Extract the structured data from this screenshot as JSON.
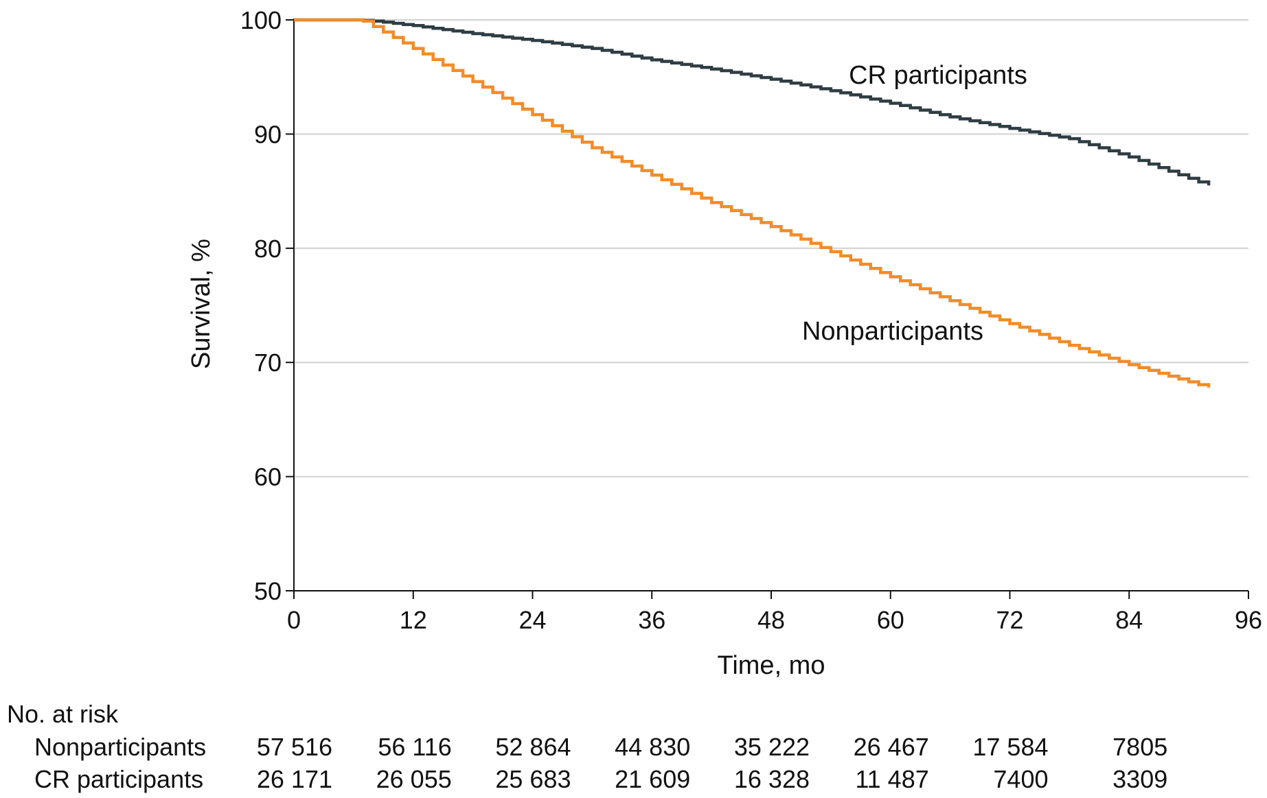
{
  "chart_data": {
    "type": "line",
    "title": "",
    "xlabel": "Time, mo",
    "ylabel": "Survival, %",
    "xlim": [
      0,
      96
    ],
    "ylim": [
      50,
      100
    ],
    "x_ticks": [
      0,
      12,
      24,
      36,
      48,
      60,
      72,
      84,
      96
    ],
    "y_ticks": [
      50,
      60,
      70,
      80,
      90,
      100
    ],
    "grid": "horizontal",
    "legend": "none",
    "series": [
      {
        "name": "CR participants",
        "color": "#2f3d44",
        "step": true,
        "points": [
          [
            0,
            100
          ],
          [
            6,
            100
          ],
          [
            8,
            99.9
          ],
          [
            12,
            99.5
          ],
          [
            18,
            98.8
          ],
          [
            24,
            98.2
          ],
          [
            30,
            97.5
          ],
          [
            36,
            96.5
          ],
          [
            42,
            95.7
          ],
          [
            48,
            94.8
          ],
          [
            54,
            93.8
          ],
          [
            60,
            92.7
          ],
          [
            66,
            91.5
          ],
          [
            72,
            90.5
          ],
          [
            78,
            89.6
          ],
          [
            84,
            88.0
          ],
          [
            92,
            85.5
          ]
        ]
      },
      {
        "name": "Nonparticipants",
        "color": "#f28c28",
        "step": true,
        "points": [
          [
            0,
            100
          ],
          [
            6,
            100
          ],
          [
            7,
            99.9
          ],
          [
            12,
            97.5
          ],
          [
            18,
            94.6
          ],
          [
            24,
            91.7
          ],
          [
            30,
            88.8
          ],
          [
            36,
            86.4
          ],
          [
            42,
            84.0
          ],
          [
            48,
            81.9
          ],
          [
            54,
            79.7
          ],
          [
            60,
            77.5
          ],
          [
            66,
            75.4
          ],
          [
            72,
            73.4
          ],
          [
            78,
            71.5
          ],
          [
            84,
            69.8
          ],
          [
            92,
            67.8
          ]
        ]
      }
    ],
    "at_risk": {
      "title": "No. at risk",
      "times": [
        0,
        12,
        24,
        36,
        48,
        60,
        72,
        84
      ],
      "rows": [
        {
          "label": "Nonparticipants",
          "values": [
            "57 516",
            "56 116",
            "52 864",
            "44 830",
            "35 222",
            "26 467",
            "17 584",
            "7805"
          ]
        },
        {
          "label": "CR participants",
          "values": [
            "26 171",
            "26 055",
            "25 683",
            "21 609",
            "16 328",
            "11 487",
            "7400",
            "3309"
          ]
        }
      ]
    }
  }
}
